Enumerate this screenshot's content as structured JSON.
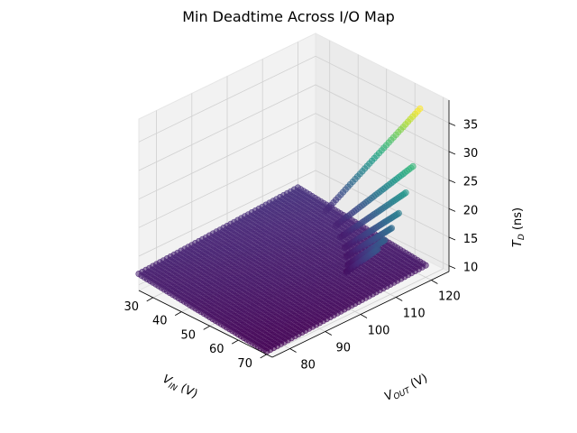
{
  "chart_data": {
    "type": "scatter",
    "title": "Min Deadtime Across I/O Map",
    "x_axis": {
      "label_main": "V",
      "label_sub": "IN",
      "label_unit": " (V)",
      "ticks": [
        30,
        40,
        50,
        60,
        70
      ],
      "range": [
        25,
        72
      ]
    },
    "y_axis": {
      "label_main": "V",
      "label_sub": "OUT",
      "label_unit": " (V)",
      "ticks": [
        80,
        90,
        100,
        110,
        120
      ],
      "range": [
        75,
        125
      ]
    },
    "z_axis": {
      "label_main": "T",
      "label_sub": "D",
      "label_unit": " (ns)",
      "ticks": [
        10,
        15,
        20,
        25,
        30,
        35
      ],
      "range": [
        9,
        39
      ]
    },
    "grid": true,
    "colormap": "viridis",
    "marker": "circle",
    "surface": {
      "description_of_points": "dense grid of points over V_IN 25–70 V and V_OUT 75–120 V",
      "vin_range": [
        25,
        70
      ],
      "vout_range": [
        75,
        120
      ],
      "td_range": [
        9.5,
        13.5
      ]
    },
    "ridges": [
      {
        "vout": 120,
        "vin": [
          35,
          68
        ],
        "td": [
          12.0,
          38.0
        ]
      },
      {
        "vout": 118,
        "vin": [
          41,
          68
        ],
        "td": [
          11.5,
          28.5
        ]
      },
      {
        "vout": 116,
        "vin": [
          45,
          68
        ],
        "td": [
          11.0,
          24.5
        ]
      },
      {
        "vout": 114,
        "vin": [
          49,
          68
        ],
        "td": [
          10.8,
          21.5
        ]
      },
      {
        "vout": 112,
        "vin": [
          52,
          68
        ],
        "td": [
          10.6,
          19.5
        ]
      },
      {
        "vout": 110,
        "vin": [
          55,
          68
        ],
        "td": [
          10.4,
          18.0
        ]
      },
      {
        "vout": 108,
        "vin": [
          57,
          68
        ],
        "td": [
          10.3,
          17.0
        ]
      }
    ],
    "legend": "none"
  }
}
